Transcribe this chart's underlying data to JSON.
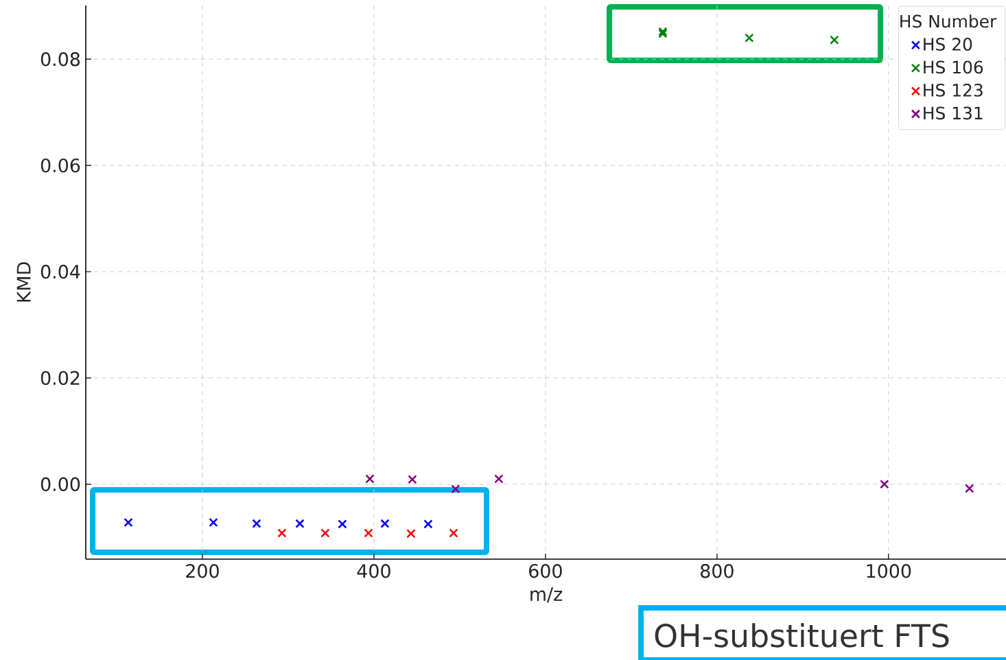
{
  "chart_data": {
    "type": "scatter",
    "xlabel": "m/z",
    "ylabel": "KMD",
    "legend_title": "HS Number",
    "xlim": [
      64,
      1137
    ],
    "ylim": [
      -0.0141,
      0.0901
    ],
    "xticks": [
      200,
      400,
      600,
      800,
      1000
    ],
    "yticks": [
      {
        "value": 0,
        "label": "0.00"
      },
      {
        "value": 0.02,
        "label": "0.02"
      },
      {
        "value": 0.04,
        "label": "0.04"
      },
      {
        "value": 0.06,
        "label": "0.06"
      },
      {
        "value": 0.08,
        "label": "0.08"
      }
    ],
    "grid": true,
    "legend": "top right",
    "marker": "cross",
    "series": [
      {
        "name": "HS 20",
        "color": "#0000ff",
        "x": [
          113.6,
          212.8,
          263.2,
          313.6,
          363.2,
          412.8,
          463.2
        ],
        "values": [
          -0.0072,
          -0.0072,
          -0.0074,
          -0.0074,
          -0.0075,
          -0.0074,
          -0.0075
        ]
      },
      {
        "name": "HS 106",
        "color": "#008000",
        "x": [
          736.8,
          736.8,
          837.6,
          936.8
        ],
        "values": [
          0.0852,
          0.0848,
          0.084,
          0.0836
        ]
      },
      {
        "name": "HS 123",
        "color": "#ff0000",
        "x": [
          292.8,
          343.2,
          393.6,
          443.2,
          492.8
        ],
        "values": [
          -0.0092,
          -0.0092,
          -0.0092,
          -0.0093,
          -0.0092
        ]
      },
      {
        "name": "HS 131",
        "color": "#800080",
        "x": [
          395.2,
          444.8,
          495.2,
          545.6,
          995.2,
          1094.4
        ],
        "values": [
          0.001,
          0.0009,
          -0.0009,
          0.001,
          0.0,
          -0.0008
        ]
      }
    ],
    "annotations": [
      "OH-substituert FTS"
    ]
  }
}
